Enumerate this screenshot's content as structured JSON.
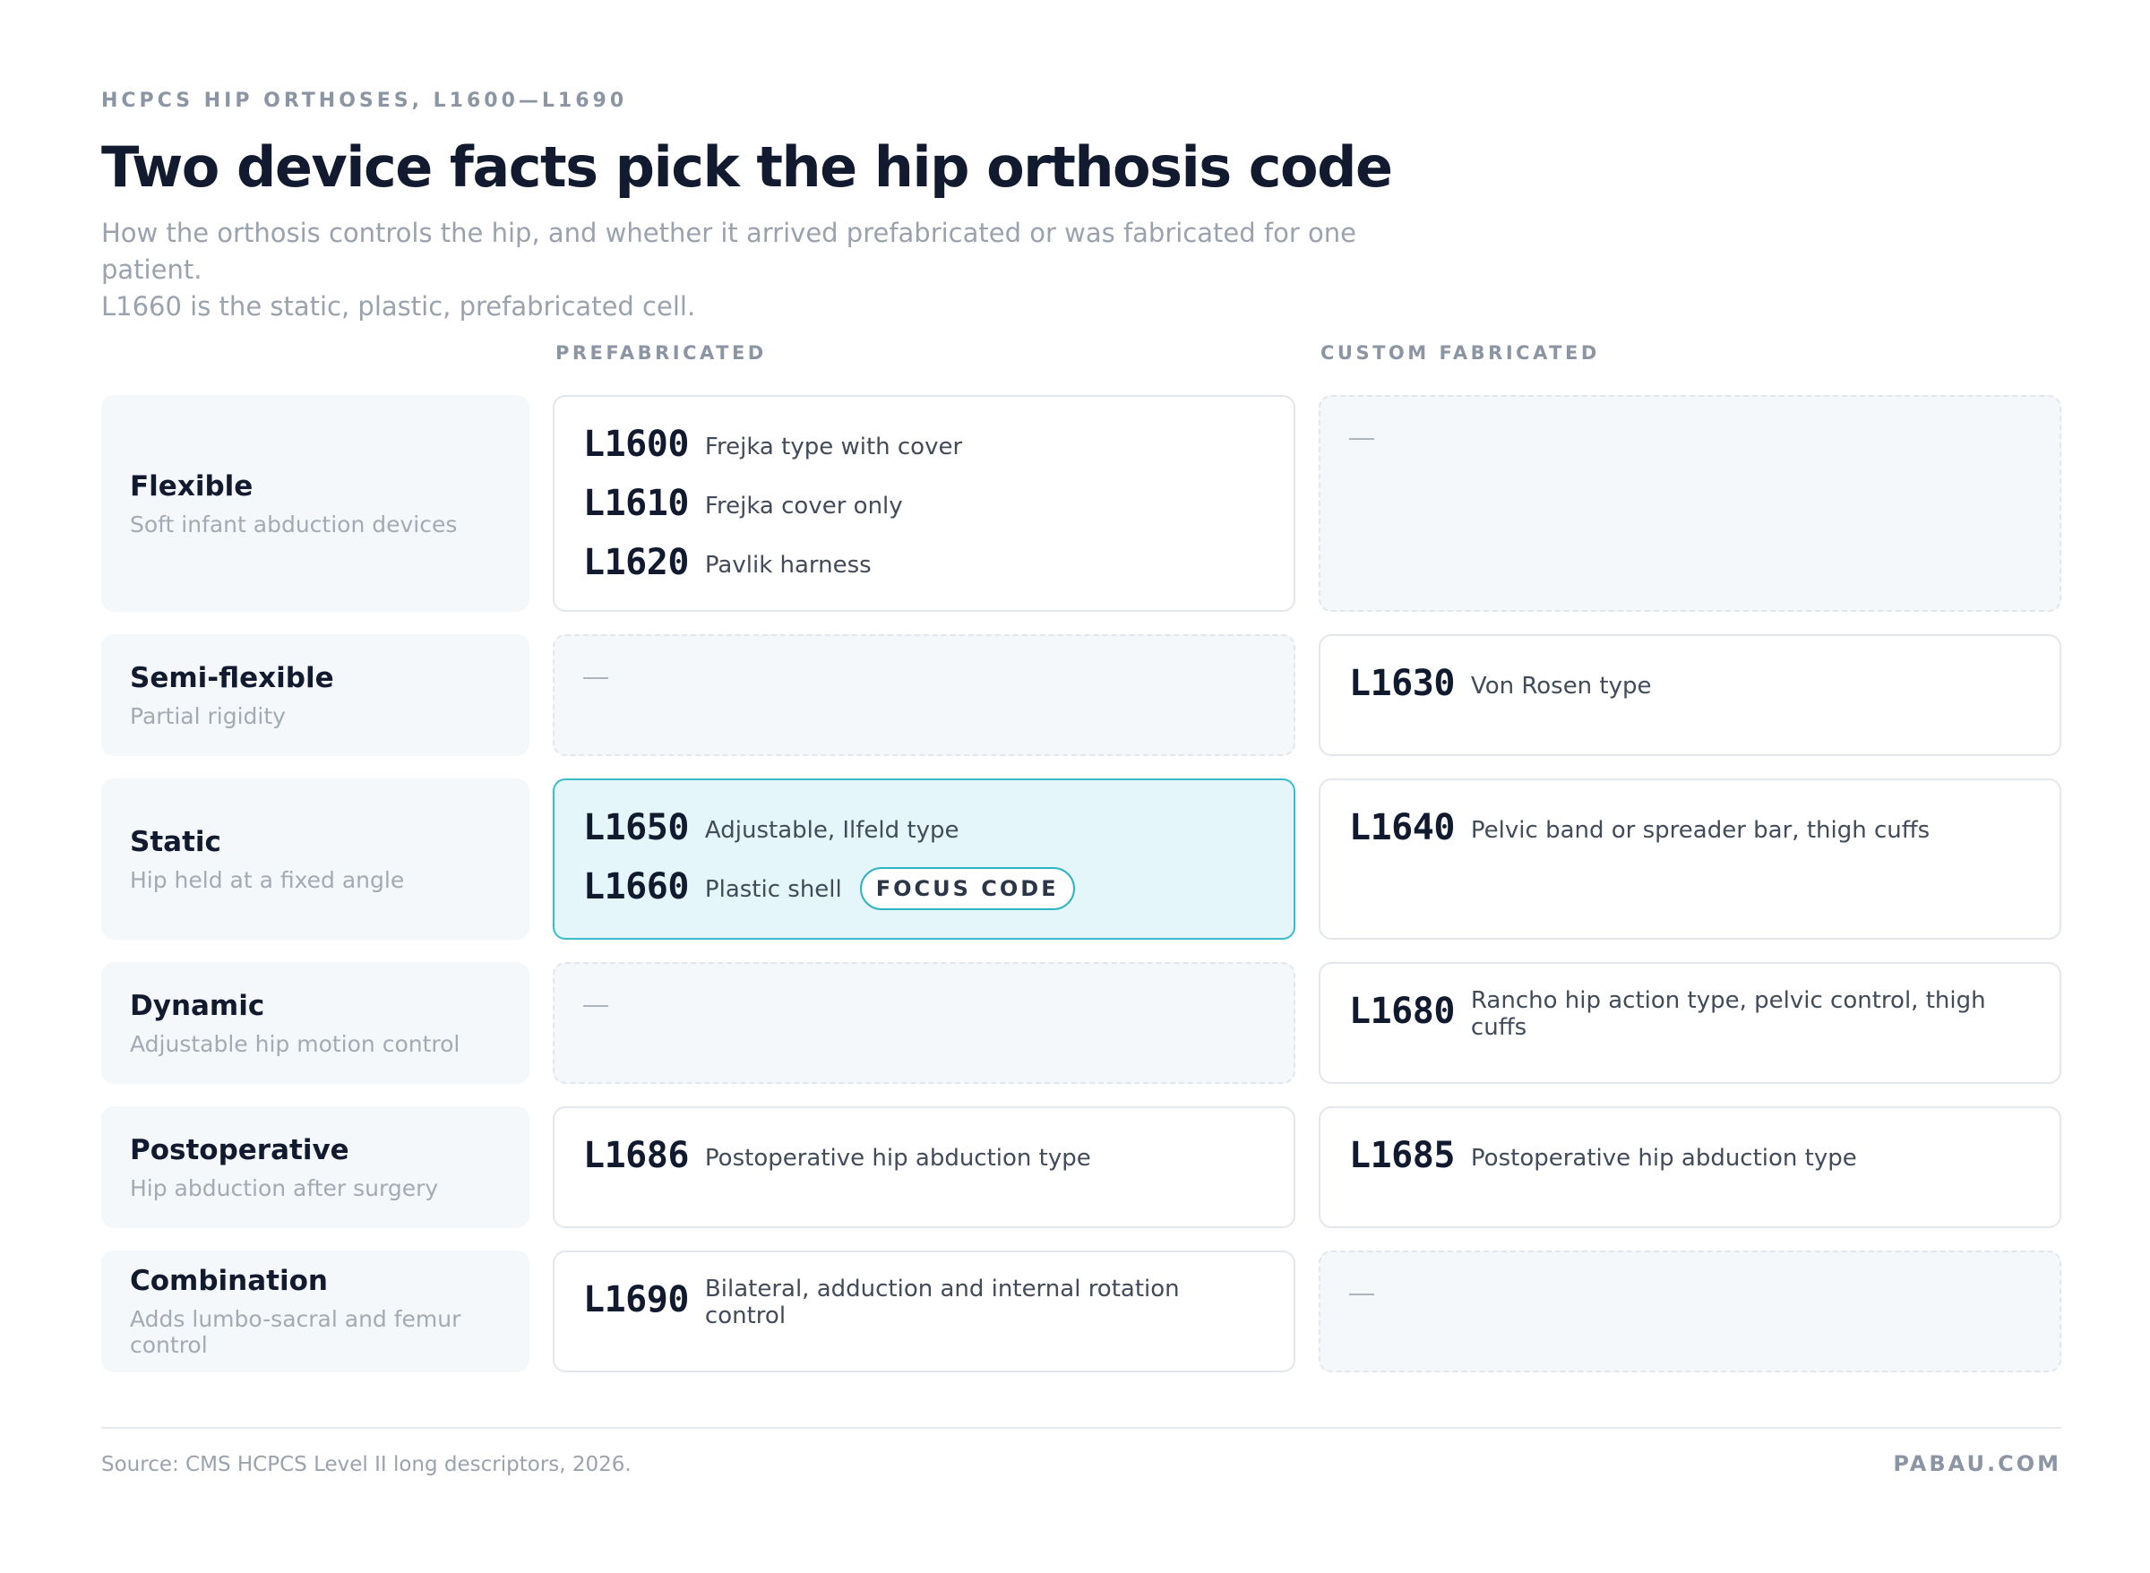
{
  "header": {
    "eyebrow": "HCPCS HIP ORTHOSES, L1600—L1690",
    "title": "Two device facts pick the hip orthosis code",
    "subtitle_line1": "How the orthosis controls the hip, and whether it arrived prefabricated or was fabricated for one patient.",
    "subtitle_line2": "L1660 is the static, plastic, prefabricated cell."
  },
  "columns": {
    "prefabricated": "PREFABRICATED",
    "custom": "CUSTOM FABRICATED"
  },
  "empty_marker": "—",
  "focus_badge": "FOCUS CODE",
  "rows": [
    {
      "name": "Flexible",
      "desc": "Soft infant abduction devices",
      "prefab": [
        {
          "code": "L1600",
          "desc": "Frejka type with cover"
        },
        {
          "code": "L1610",
          "desc": "Frejka cover only"
        },
        {
          "code": "L1620",
          "desc": "Pavlik harness"
        }
      ],
      "custom": []
    },
    {
      "name": "Semi-flexible",
      "desc": "Partial rigidity",
      "prefab": [],
      "custom": [
        {
          "code": "L1630",
          "desc": "Von Rosen type"
        }
      ]
    },
    {
      "name": "Static",
      "desc": "Hip held at a fixed angle",
      "prefab": [
        {
          "code": "L1650",
          "desc": "Adjustable, Ilfeld type"
        },
        {
          "code": "L1660",
          "desc": "Plastic shell"
        }
      ],
      "custom": [
        {
          "code": "L1640",
          "desc": "Pelvic band or spreader bar, thigh cuffs"
        }
      ]
    },
    {
      "name": "Dynamic",
      "desc": "Adjustable hip motion control",
      "prefab": [],
      "custom": [
        {
          "code": "L1680",
          "desc": "Rancho hip action type, pelvic control, thigh cuffs"
        }
      ]
    },
    {
      "name": "Postoperative",
      "desc": "Hip abduction after surgery",
      "prefab": [
        {
          "code": "L1686",
          "desc": "Postoperative hip abduction type"
        }
      ],
      "custom": [
        {
          "code": "L1685",
          "desc": "Postoperative hip abduction type"
        }
      ]
    },
    {
      "name": "Combination",
      "desc": "Adds lumbo-sacral and femur control",
      "prefab": [
        {
          "code": "L1690",
          "desc": "Bilateral, adduction and internal rotation control"
        }
      ],
      "custom": []
    }
  ],
  "footer": {
    "source": "Source: CMS HCPCS Level II long descriptors, 2026.",
    "brand": "PABAU.COM"
  }
}
